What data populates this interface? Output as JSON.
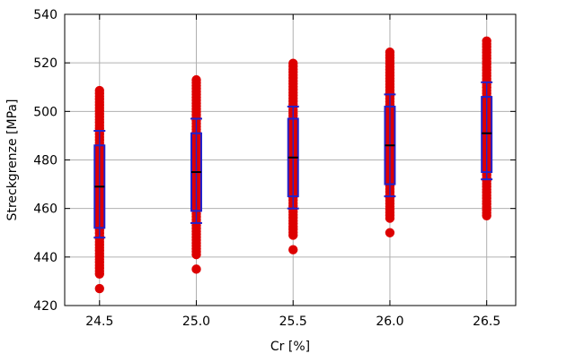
{
  "chart_data": {
    "type": "box",
    "xlabel": "Cr [%]",
    "ylabel": "Streckgrenze [MPa]",
    "xlim": [
      24.32,
      26.65
    ],
    "ylim": [
      420,
      540
    ],
    "x_ticks": [
      24.5,
      25.0,
      25.5,
      26.0,
      26.5
    ],
    "x_tick_labels": [
      "24.5",
      "25.0",
      "25.5",
      "26.0",
      "26.5"
    ],
    "y_ticks": [
      420,
      440,
      460,
      480,
      500,
      520,
      540
    ],
    "y_tick_labels": [
      "420",
      "440",
      "460",
      "480",
      "500",
      "520",
      "540"
    ],
    "grid": true,
    "groups": [
      {
        "x": 24.5,
        "q1": 452,
        "median": 469,
        "q3": 486,
        "whisker_low": 448,
        "whisker_high": 492,
        "points_min": 427,
        "points_max": 509,
        "outliers": [
          427
        ]
      },
      {
        "x": 25.0,
        "q1": 459,
        "median": 475,
        "q3": 491,
        "whisker_low": 454,
        "whisker_high": 497,
        "points_min": 435,
        "points_max": 514,
        "outliers": [
          435
        ]
      },
      {
        "x": 25.5,
        "q1": 465,
        "median": 481,
        "q3": 497,
        "whisker_low": 460,
        "whisker_high": 502,
        "points_min": 443,
        "points_max": 520,
        "outliers": [
          443
        ]
      },
      {
        "x": 26.0,
        "q1": 470,
        "median": 486,
        "q3": 502,
        "whisker_low": 465,
        "whisker_high": 507,
        "points_min": 450,
        "points_max": 525,
        "outliers": [
          450
        ]
      },
      {
        "x": 26.5,
        "q1": 475,
        "median": 491,
        "q3": 506,
        "whisker_low": 472,
        "whisker_high": 512,
        "points_min": 457,
        "points_max": 530,
        "outliers": []
      }
    ],
    "colors": {
      "points": "#dd0000",
      "box": "#2222cc",
      "median": "#000000",
      "grid": "#b0b0b0",
      "axis": "#000000"
    }
  }
}
